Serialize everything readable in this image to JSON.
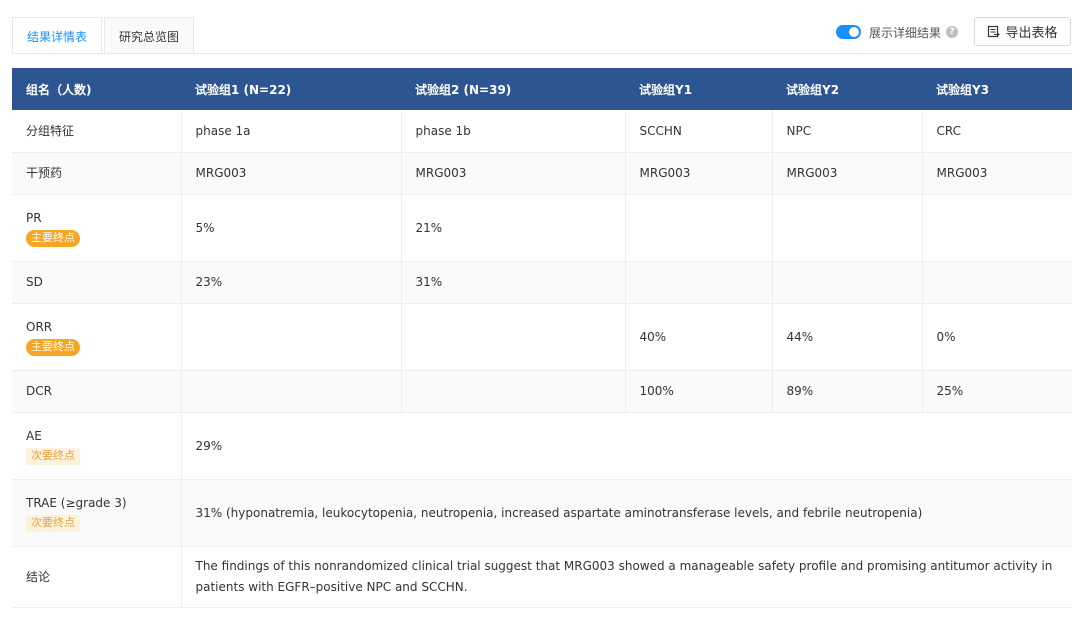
{
  "tabs": [
    {
      "label": "结果详情表",
      "active": true
    },
    {
      "label": "研究总览图",
      "active": false
    }
  ],
  "toggle": {
    "label": "展示详细结果",
    "on": true,
    "help": "?"
  },
  "export": {
    "label": "导出表格"
  },
  "colors": {
    "header": "#2d5591",
    "accent": "#1890ff",
    "primary_badge": "#f5a623",
    "secondary_badge_bg": "#fdf3dd"
  },
  "table": {
    "headers": [
      "组名（人数)",
      "试验组1 (N=22)",
      "试验组2 (N=39)",
      "试验组Y1",
      "试验组Y2",
      "试验组Y3"
    ],
    "rows": {
      "group_feature": {
        "label": "分组特征",
        "cells": [
          "phase 1a",
          "phase 1b",
          "SCCHN",
          "NPC",
          "CRC"
        ]
      },
      "drug": {
        "label": "干预药",
        "cells": [
          "MRG003",
          "MRG003",
          "MRG003",
          "MRG003",
          "MRG003"
        ]
      },
      "pr": {
        "label": "PR",
        "badge": "主要终点",
        "cells": [
          "5%",
          "21%",
          "",
          "",
          ""
        ]
      },
      "sd": {
        "label": "SD",
        "cells": [
          "23%",
          "31%",
          "",
          "",
          ""
        ]
      },
      "orr": {
        "label": "ORR",
        "badge": "主要终点",
        "cells": [
          "",
          "",
          "40%",
          "44%",
          "0%"
        ]
      },
      "dcr": {
        "label": "DCR",
        "cells": [
          "",
          "",
          "100%",
          "89%",
          "25%"
        ]
      },
      "ae": {
        "label": "AE",
        "badge": "次要终点",
        "value": "29%"
      },
      "trae": {
        "label": "TRAE (≥grade 3)",
        "badge": "次要终点",
        "value": "31%  (hyponatremia, leukocytopenia, neutropenia, increased aspartate aminotransferase levels, and febrile neutropenia)"
      },
      "conclusion": {
        "label": "结论",
        "value": "The findings of this nonrandomized clinical trial suggest that MRG003 showed a manageable safety profile and promising antitumor activity in patients with EGFR–positive NPC and SCCHN."
      }
    }
  }
}
